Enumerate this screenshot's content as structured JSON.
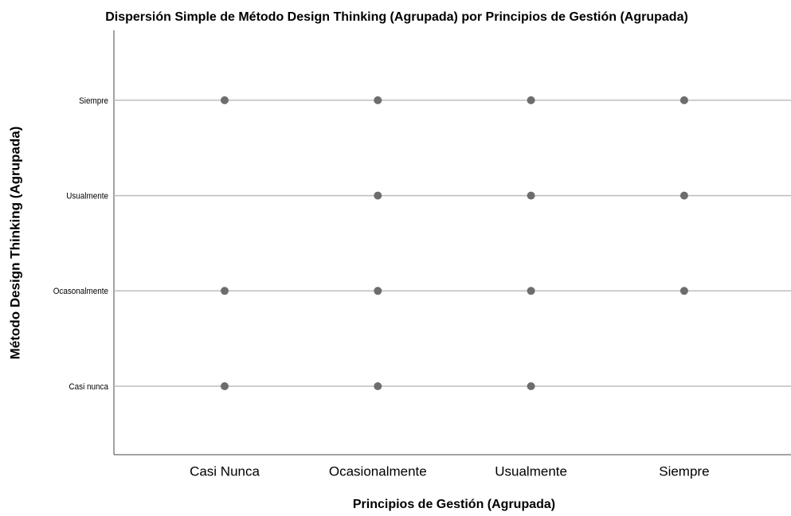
{
  "chart_data": {
    "type": "scatter",
    "title": "Dispersión Simple de Método Design Thinking (Agrupada) por Principios de Gestión (Agrupada)",
    "x_label": "Principios de Gestión (Agrupada)",
    "y_label": "Método Design Thinking (Agrupada)",
    "x_categories": [
      "Casi Nunca",
      "Ocasionalmente",
      "Usualmente",
      "Siempre"
    ],
    "y_categories": [
      "Casi nunca",
      "Ocasonalmente",
      "Usualmente",
      "Siempre"
    ],
    "color": "#6d6d6d",
    "grid": true,
    "points": [
      {
        "x": "Casi Nunca",
        "y": "Siempre"
      },
      {
        "x": "Ocasionalmente",
        "y": "Siempre"
      },
      {
        "x": "Usualmente",
        "y": "Siempre"
      },
      {
        "x": "Siempre",
        "y": "Siempre"
      },
      {
        "x": "Ocasionalmente",
        "y": "Usualmente"
      },
      {
        "x": "Usualmente",
        "y": "Usualmente"
      },
      {
        "x": "Siempre",
        "y": "Usualmente"
      },
      {
        "x": "Casi Nunca",
        "y": "Ocasonalmente"
      },
      {
        "x": "Ocasionalmente",
        "y": "Ocasonalmente"
      },
      {
        "x": "Usualmente",
        "y": "Ocasonalmente"
      },
      {
        "x": "Siempre",
        "y": "Ocasonalmente"
      },
      {
        "x": "Casi Nunca",
        "y": "Casi nunca"
      },
      {
        "x": "Ocasionalmente",
        "y": "Casi nunca"
      },
      {
        "x": "Usualmente",
        "y": "Casi nunca"
      }
    ]
  }
}
